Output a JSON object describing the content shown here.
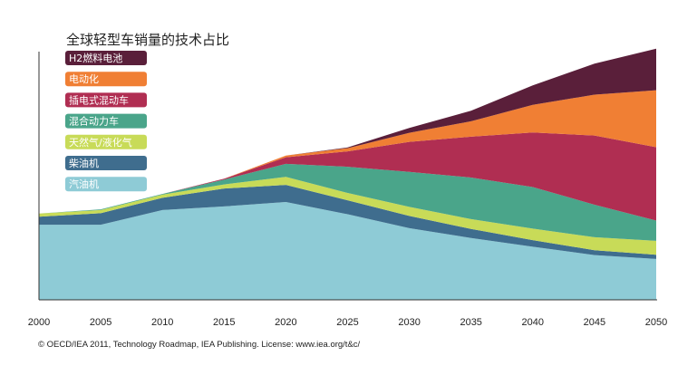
{
  "chart_data": {
    "type": "area",
    "stacked": true,
    "title": "全球轻型车销量的技术占比",
    "xlabel": "",
    "ylabel": "",
    "x": [
      2000,
      2005,
      2010,
      2015,
      2020,
      2025,
      2030,
      2035,
      2040,
      2045,
      2050
    ],
    "ylim": [
      0,
      1
    ],
    "legend_position": "top-left",
    "series": [
      {
        "name": "汽油机",
        "color": "#8ecbd6",
        "values": [
          0.307,
          0.307,
          0.367,
          0.382,
          0.4,
          0.35,
          0.293,
          0.253,
          0.217,
          0.183,
          0.167
        ]
      },
      {
        "name": "柴油机",
        "color": "#3f6d8e",
        "values": [
          0.033,
          0.047,
          0.05,
          0.073,
          0.07,
          0.057,
          0.05,
          0.037,
          0.027,
          0.02,
          0.017
        ]
      },
      {
        "name": "天然气/液化气",
        "color": "#c8db58",
        "values": [
          0.013,
          0.013,
          0.013,
          0.017,
          0.033,
          0.03,
          0.037,
          0.04,
          0.047,
          0.053,
          0.057
        ]
      },
      {
        "name": "混合动力车",
        "color": "#4aa58a",
        "values": [
          0.0,
          0.003,
          0.003,
          0.02,
          0.053,
          0.107,
          0.143,
          0.17,
          0.17,
          0.133,
          0.083
        ]
      },
      {
        "name": "插电式混动车",
        "color": "#b02e52",
        "values": [
          0.0,
          0.0,
          0.0,
          0.003,
          0.027,
          0.063,
          0.123,
          0.167,
          0.223,
          0.283,
          0.3
        ]
      },
      {
        "name": "电动化",
        "color": "#f07f34",
        "values": [
          0.0,
          0.0,
          0.0,
          0.0,
          0.007,
          0.013,
          0.037,
          0.063,
          0.113,
          0.167,
          0.233
        ]
      },
      {
        "name": "H2燃料电池",
        "color": "#5a1f3a",
        "values": [
          0.0,
          0.0,
          0.0,
          0.0,
          0.0,
          0.003,
          0.02,
          0.043,
          0.08,
          0.127,
          0.17
        ]
      }
    ]
  },
  "license": "© OECD/IEA 2011, Technology Roadmap, IEA Publishing. License: www.iea.org/t&c/"
}
